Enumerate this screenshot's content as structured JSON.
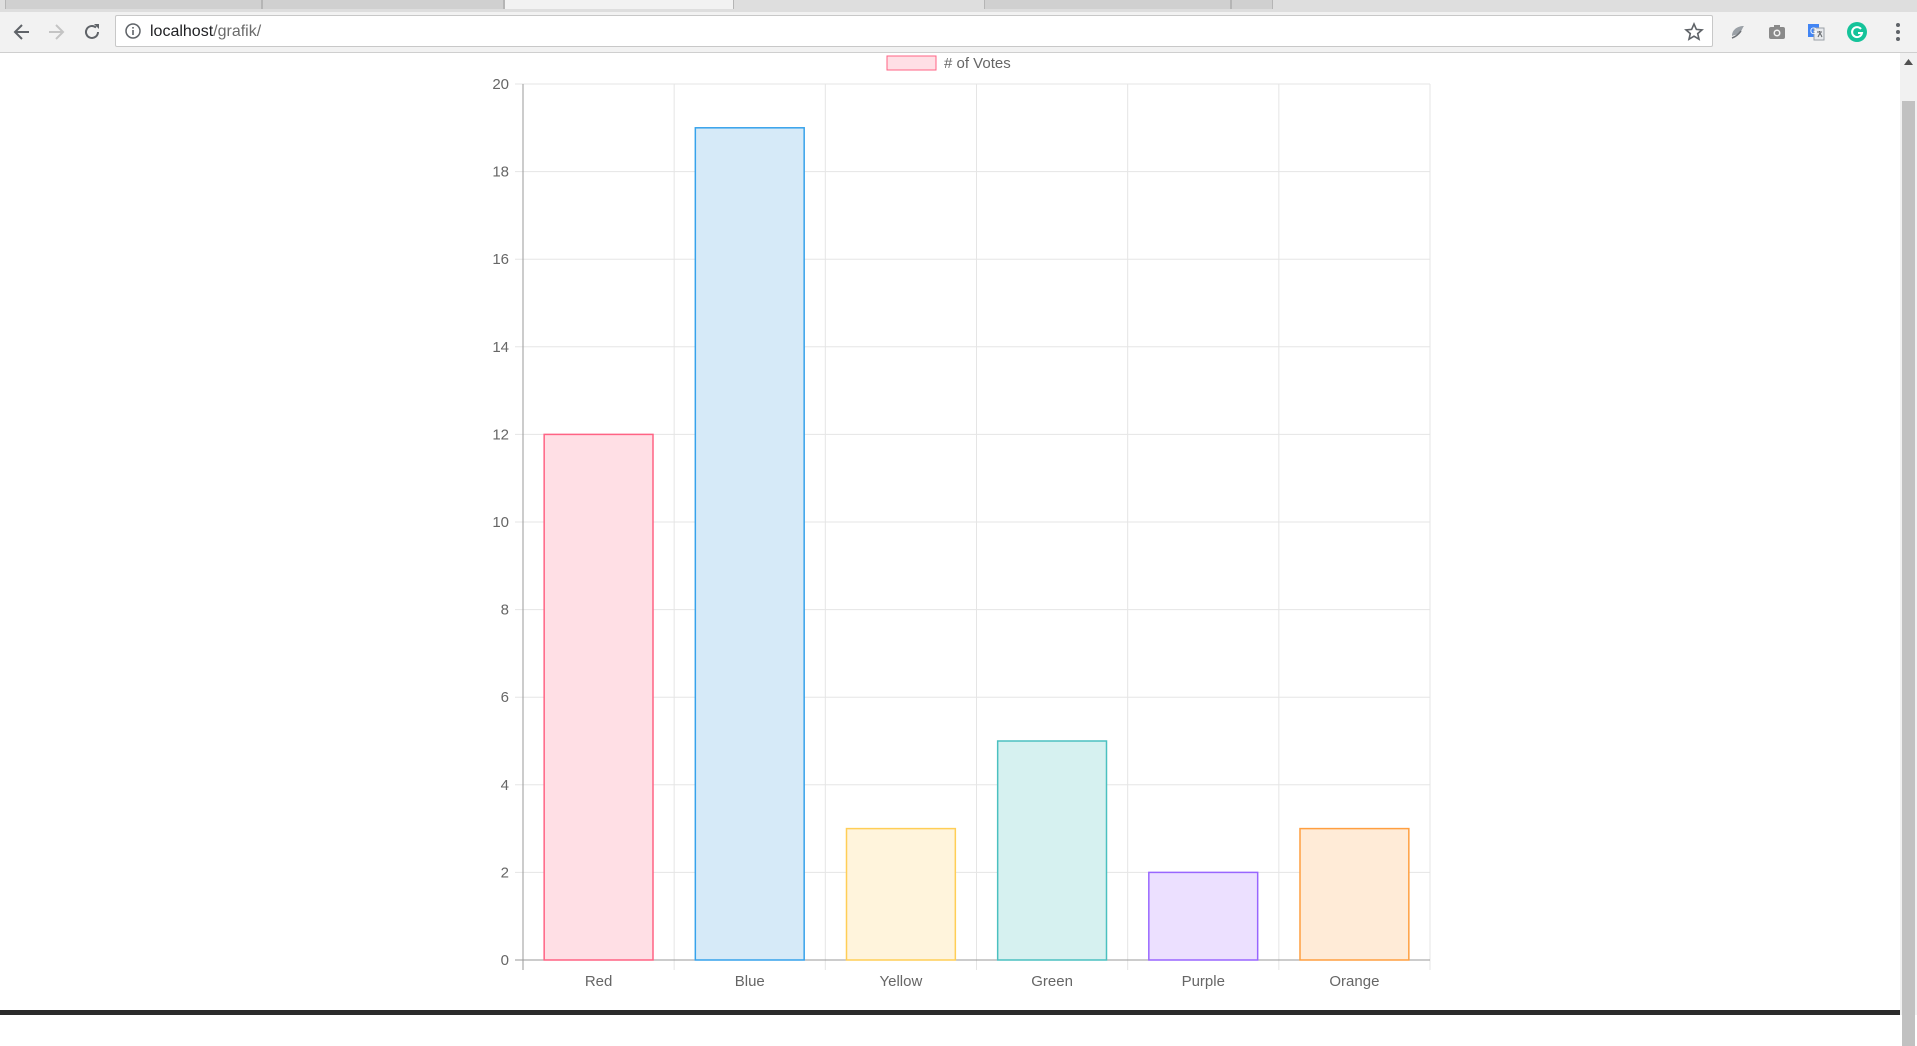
{
  "browser": {
    "url_host": "localhost",
    "url_path": "/grafik/",
    "icons": [
      "back-arrow-icon",
      "forward-arrow-icon",
      "reload-icon",
      "info-icon",
      "star-icon",
      "extension-icon",
      "camera-icon",
      "translate-icon",
      "grammarly-icon",
      "kebab-menu-icon"
    ]
  },
  "chart_data": {
    "type": "bar",
    "categories": [
      "Red",
      "Blue",
      "Yellow",
      "Green",
      "Purple",
      "Orange"
    ],
    "series": [
      {
        "name": "# of Votes",
        "values": [
          12,
          19,
          3,
          5,
          2,
          3
        ],
        "fill_colors": [
          "#ffdfe5",
          "#d6eaf8",
          "#fff4dc",
          "#d6f1f0",
          "#ece0ff",
          "#ffebd7"
        ],
        "border_colors": [
          "#ff6384",
          "#36a2eb",
          "#ffce56",
          "#4bc0c0",
          "#9966ff",
          "#ff9f40"
        ]
      }
    ],
    "yticks": [
      0,
      2,
      4,
      6,
      8,
      10,
      12,
      14,
      16,
      18,
      20
    ],
    "ylim": [
      0,
      20
    ],
    "grid": true,
    "legend": "top-center",
    "title": "",
    "xlabel": "",
    "ylabel": ""
  }
}
